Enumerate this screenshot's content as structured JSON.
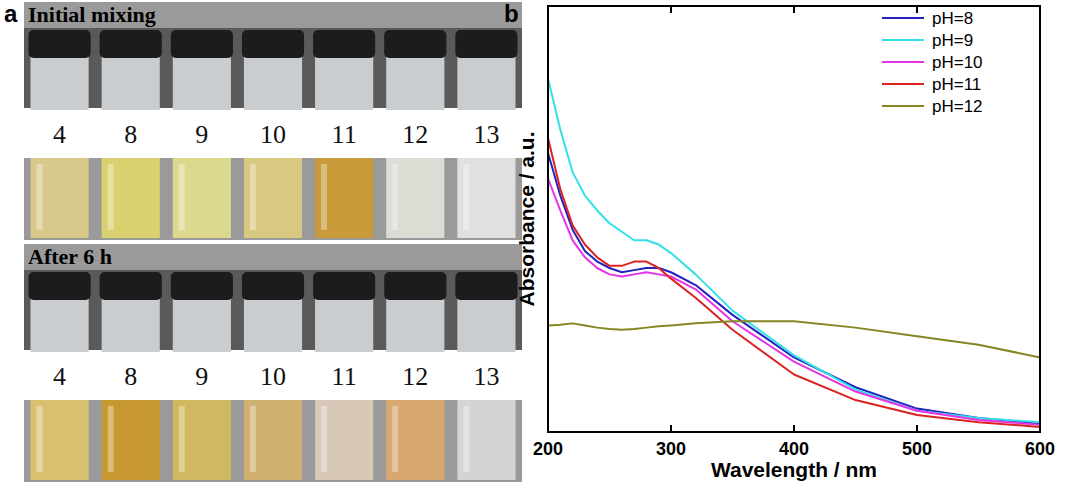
{
  "panel_a": {
    "label": "a",
    "rows": [
      {
        "title": "Initial mixing",
        "samples": [
          4,
          8,
          9,
          10,
          11,
          12,
          13
        ],
        "colors": [
          "#d8c98a",
          "#d9d070",
          "#dcd890",
          "#d8c880",
          "#c89a3a",
          "#dcdcd4",
          "#e0e0e0"
        ]
      },
      {
        "title": "After 6 h",
        "samples": [
          4,
          8,
          9,
          10,
          11,
          12,
          13
        ],
        "colors": [
          "#d8c070",
          "#c89830",
          "#d0b860",
          "#d0b070",
          "#d8c8b8",
          "#d8a870",
          "#d4d4d4"
        ]
      }
    ]
  },
  "chart_data": {
    "label": "b",
    "type": "line",
    "x_label": "Wavelength / nm",
    "y_label": "Absorbance / a.u.",
    "x": [
      200,
      210,
      220,
      230,
      240,
      250,
      260,
      270,
      280,
      290,
      300,
      320,
      350,
      400,
      450,
      500,
      550,
      600
    ],
    "series": [
      {
        "name": "pH=8",
        "color": "#2222c0",
        "values": [
          0.655,
          0.555,
          0.475,
          0.425,
          0.4,
          0.385,
          0.375,
          0.38,
          0.385,
          0.385,
          0.375,
          0.345,
          0.275,
          0.175,
          0.105,
          0.055,
          0.033,
          0.02
        ]
      },
      {
        "name": "pH=9",
        "color": "#33e0e6",
        "values": [
          0.83,
          0.71,
          0.61,
          0.555,
          0.52,
          0.49,
          0.47,
          0.45,
          0.45,
          0.44,
          0.42,
          0.37,
          0.285,
          0.18,
          0.1,
          0.05,
          0.033,
          0.023
        ]
      },
      {
        "name": "pH=10",
        "color": "#e633e6",
        "values": [
          0.595,
          0.52,
          0.45,
          0.41,
          0.385,
          0.37,
          0.365,
          0.37,
          0.375,
          0.37,
          0.365,
          0.335,
          0.26,
          0.165,
          0.095,
          0.05,
          0.028,
          0.017
        ]
      },
      {
        "name": "pH=11",
        "color": "#dd2222",
        "values": [
          0.69,
          0.57,
          0.485,
          0.44,
          0.41,
          0.39,
          0.39,
          0.4,
          0.4,
          0.385,
          0.36,
          0.315,
          0.24,
          0.135,
          0.075,
          0.04,
          0.023,
          0.012
        ]
      },
      {
        "name": "pH=12",
        "color": "#858522",
        "values": [
          0.25,
          0.252,
          0.255,
          0.25,
          0.245,
          0.242,
          0.24,
          0.242,
          0.245,
          0.248,
          0.25,
          0.255,
          0.26,
          0.26,
          0.245,
          0.225,
          0.205,
          0.175
        ]
      }
    ],
    "xlim": [
      200,
      600
    ],
    "xticks": [
      200,
      300,
      400,
      500,
      600
    ],
    "ylim": [
      0,
      1
    ],
    "tick_labels": "x",
    "legend": "upper right",
    "grid": false
  }
}
